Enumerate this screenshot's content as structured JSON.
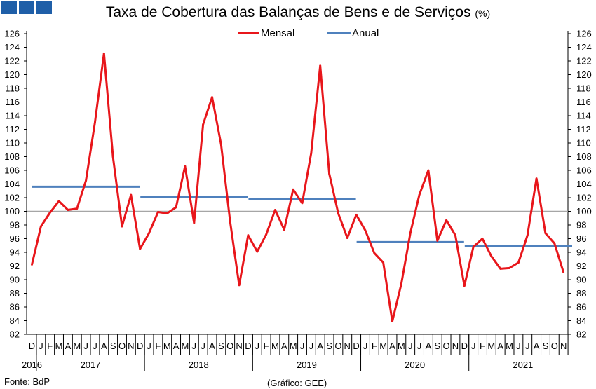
{
  "logo_colors": [
    "#1f5fa8",
    "#1f5fa8",
    "#1f5fa8"
  ],
  "title": "Taxa de Cobertura das Balanças de Bens e de Serviços",
  "title_unit": "(%)",
  "source": "Fonte: BdP",
  "credit": "(Gráfico: GEE)",
  "chart_data": {
    "type": "line",
    "title": "Taxa de Cobertura das Balanças de Bens e de Serviços (%)",
    "ylim": [
      82,
      126
    ],
    "y_ticks": [
      82,
      84,
      86,
      88,
      90,
      92,
      94,
      96,
      98,
      100,
      102,
      104,
      106,
      108,
      110,
      112,
      114,
      116,
      118,
      120,
      122,
      124,
      126
    ],
    "y_axis_left_and_right": true,
    "reference_line": 100,
    "legend_position": "top-center",
    "month_labels": [
      "D",
      "J",
      "F",
      "M",
      "A",
      "M",
      "J",
      "J",
      "A",
      "S",
      "O",
      "N",
      "D",
      "J",
      "F",
      "M",
      "A",
      "M",
      "J",
      "J",
      "A",
      "S",
      "O",
      "N",
      "D",
      "J",
      "F",
      "M",
      "A",
      "M",
      "J",
      "J",
      "A",
      "S",
      "O",
      "N",
      "D",
      "J",
      "F",
      "M",
      "A",
      "M",
      "J",
      "J",
      "A",
      "S",
      "O",
      "N",
      "D",
      "J",
      "F",
      "M",
      "A",
      "M",
      "J",
      "J",
      "A",
      "S",
      "O",
      "N"
    ],
    "year_labels": [
      {
        "label": "2016",
        "month_index": 0
      },
      {
        "label": "2017",
        "month_index": 6.5
      },
      {
        "label": "2018",
        "month_index": 18.5
      },
      {
        "label": "2019",
        "month_index": 30.5
      },
      {
        "label": "2020",
        "month_index": 42.5
      },
      {
        "label": "2021",
        "month_index": 54.5
      }
    ],
    "series": [
      {
        "name": "Mensal",
        "color": "#e8161b",
        "values": [
          92.2,
          97.8,
          99.8,
          101.5,
          100.2,
          100.4,
          104.5,
          113.0,
          123.1,
          108.0,
          97.8,
          102.4,
          94.5,
          96.8,
          99.9,
          99.7,
          100.6,
          106.6,
          98.3,
          112.7,
          116.7,
          109.8,
          98.5,
          89.2,
          96.5,
          94.1,
          96.6,
          100.2,
          97.3,
          103.2,
          101.2,
          108.5,
          121.3,
          105.5,
          99.7,
          96.1,
          99.5,
          97.2,
          93.9,
          92.5,
          83.9,
          89.4,
          96.8,
          102.4,
          106.0,
          95.7,
          98.7,
          96.5,
          89.1,
          94.8,
          96.0,
          93.4,
          91.6,
          91.7,
          92.5,
          96.5,
          104.8,
          96.8,
          95.3,
          91.1
        ]
      },
      {
        "name": "Anual",
        "color": "#4f81bd",
        "segments": [
          {
            "year": "2017",
            "value": 103.6
          },
          {
            "year": "2018",
            "value": 102.1
          },
          {
            "year": "2019",
            "value": 101.8
          },
          {
            "year": "2020",
            "value": 95.5
          },
          {
            "year": "2021",
            "value": 94.9
          }
        ]
      }
    ]
  }
}
